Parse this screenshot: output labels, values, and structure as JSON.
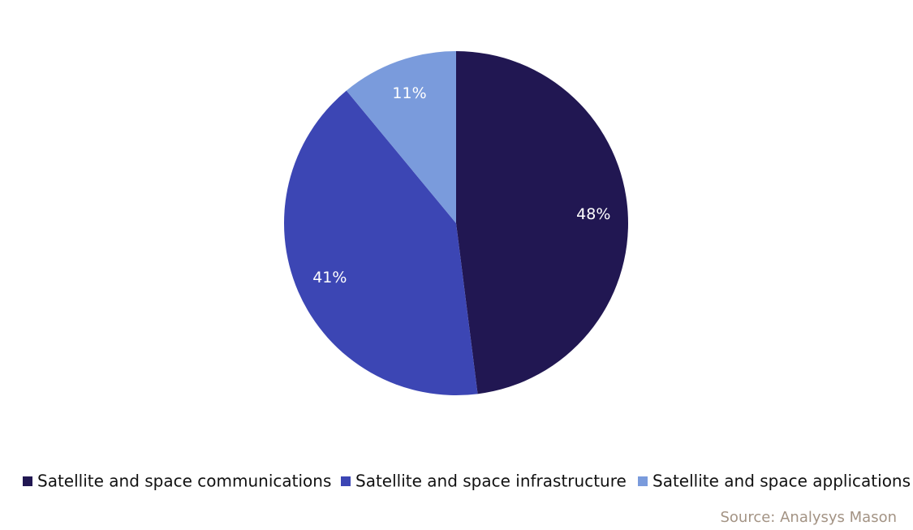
{
  "chart_data": {
    "type": "pie",
    "categories": [
      "Satellite and space communications",
      "Satellite and space infrastructure",
      "Satellite and space applications"
    ],
    "values": [
      48,
      41,
      11
    ],
    "value_labels": [
      "48%",
      "41%",
      "11%"
    ],
    "colors": [
      "#211752",
      "#3c46b4",
      "#7a9bdc"
    ],
    "source": "Source: Analysys Mason"
  }
}
